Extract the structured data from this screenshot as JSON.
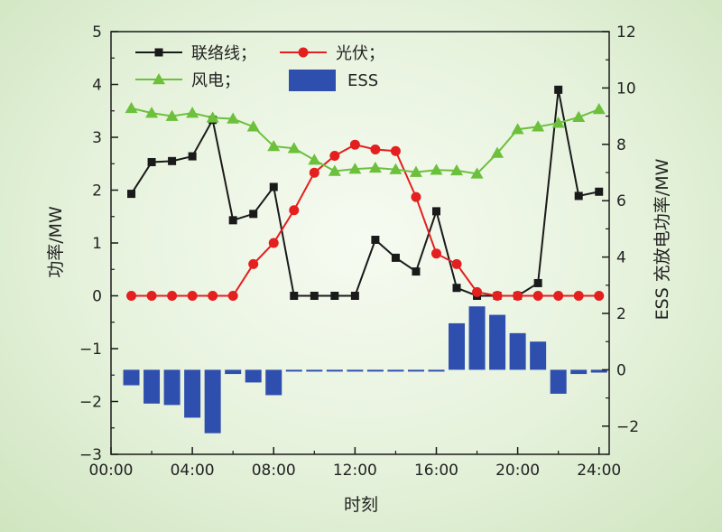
{
  "chart_data": {
    "type": "bar+line",
    "xlabel": "时刻",
    "ylabel_left": "功率/MW",
    "ylabel_right": "ESS 充放电功率/MW",
    "x_ticks": [
      "00:00",
      "04:00",
      "08:00",
      "12:00",
      "16:00",
      "20:00",
      "24:00"
    ],
    "x_hours": [
      1,
      2,
      3,
      4,
      5,
      6,
      7,
      8,
      9,
      10,
      11,
      12,
      13,
      14,
      15,
      16,
      17,
      18,
      19,
      20,
      21,
      22,
      23,
      24
    ],
    "xlim": [
      0,
      24.5
    ],
    "ylim_left": [
      -3,
      5
    ],
    "yticks_left": [
      -3,
      -2,
      -1,
      0,
      1,
      2,
      3,
      4,
      5
    ],
    "ylim_right": [
      -3,
      12
    ],
    "yticks_right": [
      -2,
      0,
      2,
      4,
      6,
      8,
      10,
      12
    ],
    "grid": false,
    "legend_position": "top-left",
    "series": [
      {
        "name": "联络线；",
        "axis": "left",
        "style": "line",
        "marker": "square",
        "color": "#1a1a1a",
        "values": [
          1.93,
          2.53,
          2.55,
          2.64,
          3.33,
          1.43,
          1.55,
          2.06,
          0,
          0,
          0,
          0,
          1.06,
          0.72,
          0.46,
          1.6,
          0.15,
          0,
          0,
          0,
          0.24,
          3.9,
          1.89,
          1.97
        ]
      },
      {
        "name": "光伏；",
        "axis": "left",
        "style": "line",
        "marker": "circle",
        "color": "#e41f1f",
        "values": [
          0,
          0,
          0,
          0,
          0,
          0,
          0.6,
          1.0,
          1.62,
          2.33,
          2.65,
          2.86,
          2.77,
          2.74,
          1.87,
          0.8,
          0.6,
          0.07,
          0,
          0,
          0,
          0,
          0,
          0
        ]
      },
      {
        "name": "风电；",
        "axis": "left",
        "style": "line",
        "marker": "triangle",
        "color": "#6cc03c",
        "values": [
          3.55,
          3.46,
          3.4,
          3.46,
          3.37,
          3.35,
          3.2,
          2.83,
          2.79,
          2.57,
          2.36,
          2.4,
          2.42,
          2.39,
          2.34,
          2.38,
          2.37,
          2.31,
          2.7,
          3.15,
          3.2,
          3.27,
          3.38,
          3.53
        ]
      },
      {
        "name": "ESS",
        "axis": "right",
        "style": "bar",
        "color": "#2f4fae",
        "values": [
          -0.55,
          -1.2,
          -1.25,
          -1.7,
          -2.25,
          -0.15,
          -0.45,
          -0.9,
          -0.04,
          -0.04,
          -0.04,
          -0.04,
          -0.04,
          -0.04,
          -0.04,
          -0.04,
          1.65,
          2.25,
          1.95,
          1.3,
          1.0,
          -0.85,
          -0.15,
          -0.1
        ]
      }
    ]
  }
}
